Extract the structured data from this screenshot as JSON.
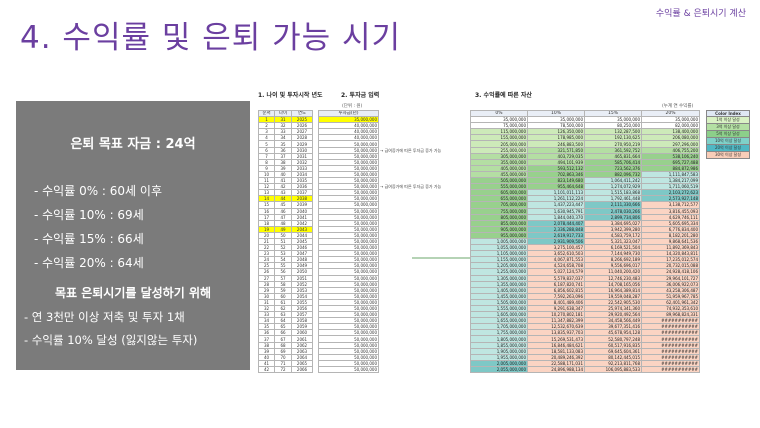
{
  "header": {
    "title": "4. 수익률 및 은퇴 가능 시기",
    "corner_label": "수익률 & 은퇴시기 계산"
  },
  "summary": {
    "title": "은퇴 목표 자금 : 24억",
    "items": [
      "- 수익률   0% : 60세 이후",
      "- 수익률 10% : 69세",
      "- 수익률 15% : 66세",
      "- 수익률 20% : 64세"
    ],
    "subtitle": "목표 은퇴시기를 달성하기 위해",
    "notes": [
      "- 연 3천만 이상 저축 및 투자 1채",
      "- 수익률 10% 달성 (잃지않는 투자)"
    ]
  },
  "section1": {
    "label": "1. 나이 및 투자시작 년도",
    "headers": [
      "순서",
      "나이",
      "연도"
    ]
  },
  "section2": {
    "label": "2. 투자금 입력",
    "unit": "(단위 : 원)",
    "header": "투자금(년)"
  },
  "section3": {
    "label": "3. 수익률에 따른 자산",
    "unit": "(누계 연 수익률)",
    "headers": [
      "0%",
      "10%",
      "15%",
      "20%"
    ]
  },
  "note_text": "→ 급여증가에 따른 투자금 증가 가능",
  "legend": {
    "title": "Color Index",
    "items": [
      {
        "label": "1억 이상 달성",
        "color": "#d9f2c4"
      },
      {
        "label": "3억 이상 달성",
        "color": "#b3e0a3"
      },
      {
        "label": "5억 이상 달성",
        "color": "#8ccf8a"
      },
      {
        "label": "10억 이상 달성",
        "color": "#7fd1c9"
      },
      {
        "label": "20억 이상 달성",
        "color": "#4fb8c4"
      },
      {
        "label": "30억 이상 달성",
        "color": "#f8cdb8"
      }
    ]
  },
  "rows": [
    {
      "n": "1",
      "age": "31",
      "year": "2025",
      "inv": "35,000,000",
      "r0": "35,000,000",
      "r10": "35,000,000",
      "r15": "35,000,000",
      "r20": "35,000,000",
      "hl": true
    },
    {
      "n": "2",
      "age": "32",
      "year": "2026",
      "inv": "40,000,000",
      "r0": "75,000,000",
      "r10": "78,500,000",
      "r15": "80,250,000",
      "r20": "82,000,000"
    },
    {
      "n": "3",
      "age": "33",
      "year": "2027",
      "inv": "40,000,000",
      "r0": "115,000,000",
      "r10": "126,350,000",
      "r15": "132,287,500",
      "r20": "138,400,000"
    },
    {
      "n": "4",
      "age": "34",
      "year": "2028",
      "inv": "40,000,000",
      "r0": "155,000,000",
      "r10": "178,985,000",
      "r15": "192,130,625",
      "r20": "206,080,000"
    },
    {
      "n": "5",
      "age": "35",
      "year": "2029",
      "inv": "50,000,000",
      "r0": "205,000,000",
      "r10": "246,883,500",
      "r15": "270,950,219",
      "r20": "297,296,000"
    },
    {
      "n": "6",
      "age": "36",
      "year": "2030",
      "inv": "50,000,000",
      "r0": "255,000,000",
      "r10": "321,571,850",
      "r15": "361,592,752",
      "r20": "406,755,200"
    },
    {
      "n": "7",
      "age": "37",
      "year": "2031",
      "inv": "50,000,000",
      "r0": "305,000,000",
      "r10": "403,729,035",
      "r15": "465,831,664",
      "r20": "538,106,240"
    },
    {
      "n": "8",
      "age": "38",
      "year": "2032",
      "inv": "50,000,000",
      "r0": "355,000,000",
      "r10": "494,101,939",
      "r15": "585,706,414",
      "r20": "695,727,488"
    },
    {
      "n": "9",
      "age": "39",
      "year": "2033",
      "inv": "50,000,000",
      "r0": "405,000,000",
      "r10": "593,512,132",
      "r15": "723,562,376",
      "r20": "884,872,986"
    },
    {
      "n": "10",
      "age": "40",
      "year": "2034",
      "inv": "50,000,000",
      "r0": "455,000,000",
      "r10": "702,863,346",
      "r15": "882,096,732",
      "r20": "1,111,847,583"
    },
    {
      "n": "11",
      "age": "41",
      "year": "2035",
      "inv": "50,000,000",
      "r0": "505,000,000",
      "r10": "823,149,680",
      "r15": "1,064,411,242",
      "r20": "1,384,217,099"
    },
    {
      "n": "12",
      "age": "42",
      "year": "2036",
      "inv": "50,000,000",
      "r0": "555,000,000",
      "r10": "955,464,648",
      "r15": "1,274,072,929",
      "r20": "1,711,060,519"
    },
    {
      "n": "13",
      "age": "43",
      "year": "2037",
      "inv": "50,000,000",
      "r0": "605,000,000",
      "r10": "1,101,011,113",
      "r15": "1,515,183,868",
      "r20": "2,103,272,623"
    },
    {
      "n": "14",
      "age": "44",
      "year": "2038",
      "inv": "50,000,000",
      "r0": "655,000,000",
      "r10": "1,261,112,224",
      "r15": "1,792,461,448",
      "r20": "2,573,927,148",
      "hl": true
    },
    {
      "n": "15",
      "age": "45",
      "year": "2039",
      "inv": "50,000,000",
      "r0": "705,000,000",
      "r10": "1,437,223,447",
      "r15": "2,111,330,666",
      "r20": "3,138,712,577"
    },
    {
      "n": "16",
      "age": "46",
      "year": "2040",
      "inv": "50,000,000",
      "r0": "755,000,000",
      "r10": "1,630,945,791",
      "r15": "2,478,030,266",
      "r20": "3,816,455,093"
    },
    {
      "n": "17",
      "age": "47",
      "year": "2041",
      "inv": "50,000,000",
      "r0": "805,000,000",
      "r10": "1,844,040,370",
      "r15": "2,899,734,806",
      "r20": "4,629,746,111"
    },
    {
      "n": "18",
      "age": "48",
      "year": "2042",
      "inv": "50,000,000",
      "r0": "855,000,000",
      "r10": "2,078,444,407",
      "r15": "3,384,695,027",
      "r20": "5,605,695,334"
    },
    {
      "n": "19",
      "age": "49",
      "year": "2043",
      "inv": "50,000,000",
      "r0": "905,000,000",
      "r10": "2,336,288,848",
      "r15": "3,942,399,280",
      "r20": "6,776,834,400",
      "hl": true
    },
    {
      "n": "20",
      "age": "50",
      "year": "2044",
      "inv": "50,000,000",
      "r0": "955,000,000",
      "r10": "2,619,917,733",
      "r15": "4,583,759,172",
      "r20": "8,182,201,280"
    },
    {
      "n": "21",
      "age": "51",
      "year": "2045",
      "inv": "50,000,000",
      "r0": "1,005,000,000",
      "r10": "2,931,909,506",
      "r15": "5,321,323,047",
      "r20": "9,868,641,536"
    },
    {
      "n": "22",
      "age": "52",
      "year": "2046",
      "inv": "50,000,000",
      "r0": "1,055,000,000",
      "r10": "3,275,100,457",
      "r15": "6,169,521,504",
      "r20": "11,892,369,843"
    },
    {
      "n": "23",
      "age": "53",
      "year": "2047",
      "inv": "50,000,000",
      "r0": "1,105,000,000",
      "r10": "3,652,610,503",
      "r15": "7,144,949,730",
      "r20": "14,320,843,811"
    },
    {
      "n": "24",
      "age": "54",
      "year": "2048",
      "inv": "50,000,000",
      "r0": "1,155,000,000",
      "r10": "4,067,871,553",
      "r15": "8,266,692,189",
      "r20": "17,235,012,574"
    },
    {
      "n": "25",
      "age": "55",
      "year": "2049",
      "inv": "50,000,000",
      "r0": "1,205,000,000",
      "r10": "4,524,658,708",
      "r15": "9,556,696,017",
      "r20": "20,732,015,088"
    },
    {
      "n": "26",
      "age": "56",
      "year": "2050",
      "inv": "50,000,000",
      "r0": "1,255,000,000",
      "r10": "5,027,124,579",
      "r15": "11,040,200,420",
      "r20": "24,928,418,106"
    },
    {
      "n": "27",
      "age": "57",
      "year": "2051",
      "inv": "50,000,000",
      "r0": "1,305,000,000",
      "r10": "5,579,837,037",
      "r15": "12,746,230,483",
      "r20": "29,964,101,727"
    },
    {
      "n": "28",
      "age": "58",
      "year": "2052",
      "inv": "50,000,000",
      "r0": "1,355,000,000",
      "r10": "6,187,820,741",
      "r15": "14,708,165,056",
      "r20": "36,006,922,073"
    },
    {
      "n": "29",
      "age": "59",
      "year": "2053",
      "inv": "50,000,000",
      "r0": "1,405,000,000",
      "r10": "6,856,602,815",
      "r15": "16,964,389,814",
      "r20": "43,258,306,487"
    },
    {
      "n": "30",
      "age": "60",
      "year": "2054",
      "inv": "50,000,000",
      "r0": "1,455,000,000",
      "r10": "7,592,263,096",
      "r15": "19,559,048,287",
      "r20": "51,959,967,785"
    },
    {
      "n": "31",
      "age": "61",
      "year": "2055",
      "inv": "50,000,000",
      "r0": "1,505,000,000",
      "r10": "8,401,489,406",
      "r15": "22,542,905,530",
      "r20": "62,401,961,342"
    },
    {
      "n": "32",
      "age": "62",
      "year": "2056",
      "inv": "50,000,000",
      "r0": "1,555,000,000",
      "r10": "9,291,638,347",
      "r15": "25,974,341,360",
      "r20": "74,932,353,610"
    },
    {
      "n": "33",
      "age": "63",
      "year": "2057",
      "inv": "50,000,000",
      "r0": "1,605,000,000",
      "r10": "10,270,802,181",
      "r15": "29,920,492,564",
      "r20": "89,968,824,331"
    },
    {
      "n": "34",
      "age": "64",
      "year": "2058",
      "inv": "50,000,000",
      "r0": "1,655,000,000",
      "r10": "11,347,882,399",
      "r15": "34,458,566,449",
      "r20": "###########"
    },
    {
      "n": "35",
      "age": "65",
      "year": "2059",
      "inv": "50,000,000",
      "r0": "1,705,000,000",
      "r10": "12,532,670,639",
      "r15": "39,677,351,416",
      "r20": "###########"
    },
    {
      "n": "36",
      "age": "66",
      "year": "2060",
      "inv": "50,000,000",
      "r0": "1,755,000,000",
      "r10": "13,835,937,703",
      "r15": "45,678,954,128",
      "r20": "###########"
    },
    {
      "n": "37",
      "age": "67",
      "year": "2061",
      "inv": "50,000,000",
      "r0": "1,805,000,000",
      "r10": "15,269,531,473",
      "r15": "52,580,797,248",
      "r20": "###########"
    },
    {
      "n": "38",
      "age": "68",
      "year": "2062",
      "inv": "50,000,000",
      "r0": "1,855,000,000",
      "r10": "16,846,484,621",
      "r15": "60,517,916,835",
      "r20": "###########"
    },
    {
      "n": "39",
      "age": "69",
      "year": "2063",
      "inv": "50,000,000",
      "r0": "1,905,000,000",
      "r10": "18,581,133,083",
      "r15": "69,645,604,361",
      "r20": "###########"
    },
    {
      "n": "40",
      "age": "70",
      "year": "2064",
      "inv": "50,000,000",
      "r0": "1,955,000,000",
      "r10": "20,489,246,392",
      "r15": "80,142,445,015",
      "r20": "###########"
    },
    {
      "n": "41",
      "age": "71",
      "year": "2065",
      "inv": "50,000,000",
      "r0": "2,005,000,000",
      "r10": "22,588,171,031",
      "r15": "92,213,811,768",
      "r20": "###########"
    },
    {
      "n": "42",
      "age": "72",
      "year": "2066",
      "inv": "50,000,000",
      "r0": "2,055,000,000",
      "r10": "24,896,988,134",
      "r15": "106,095,883,533",
      "r20": "###########"
    }
  ]
}
